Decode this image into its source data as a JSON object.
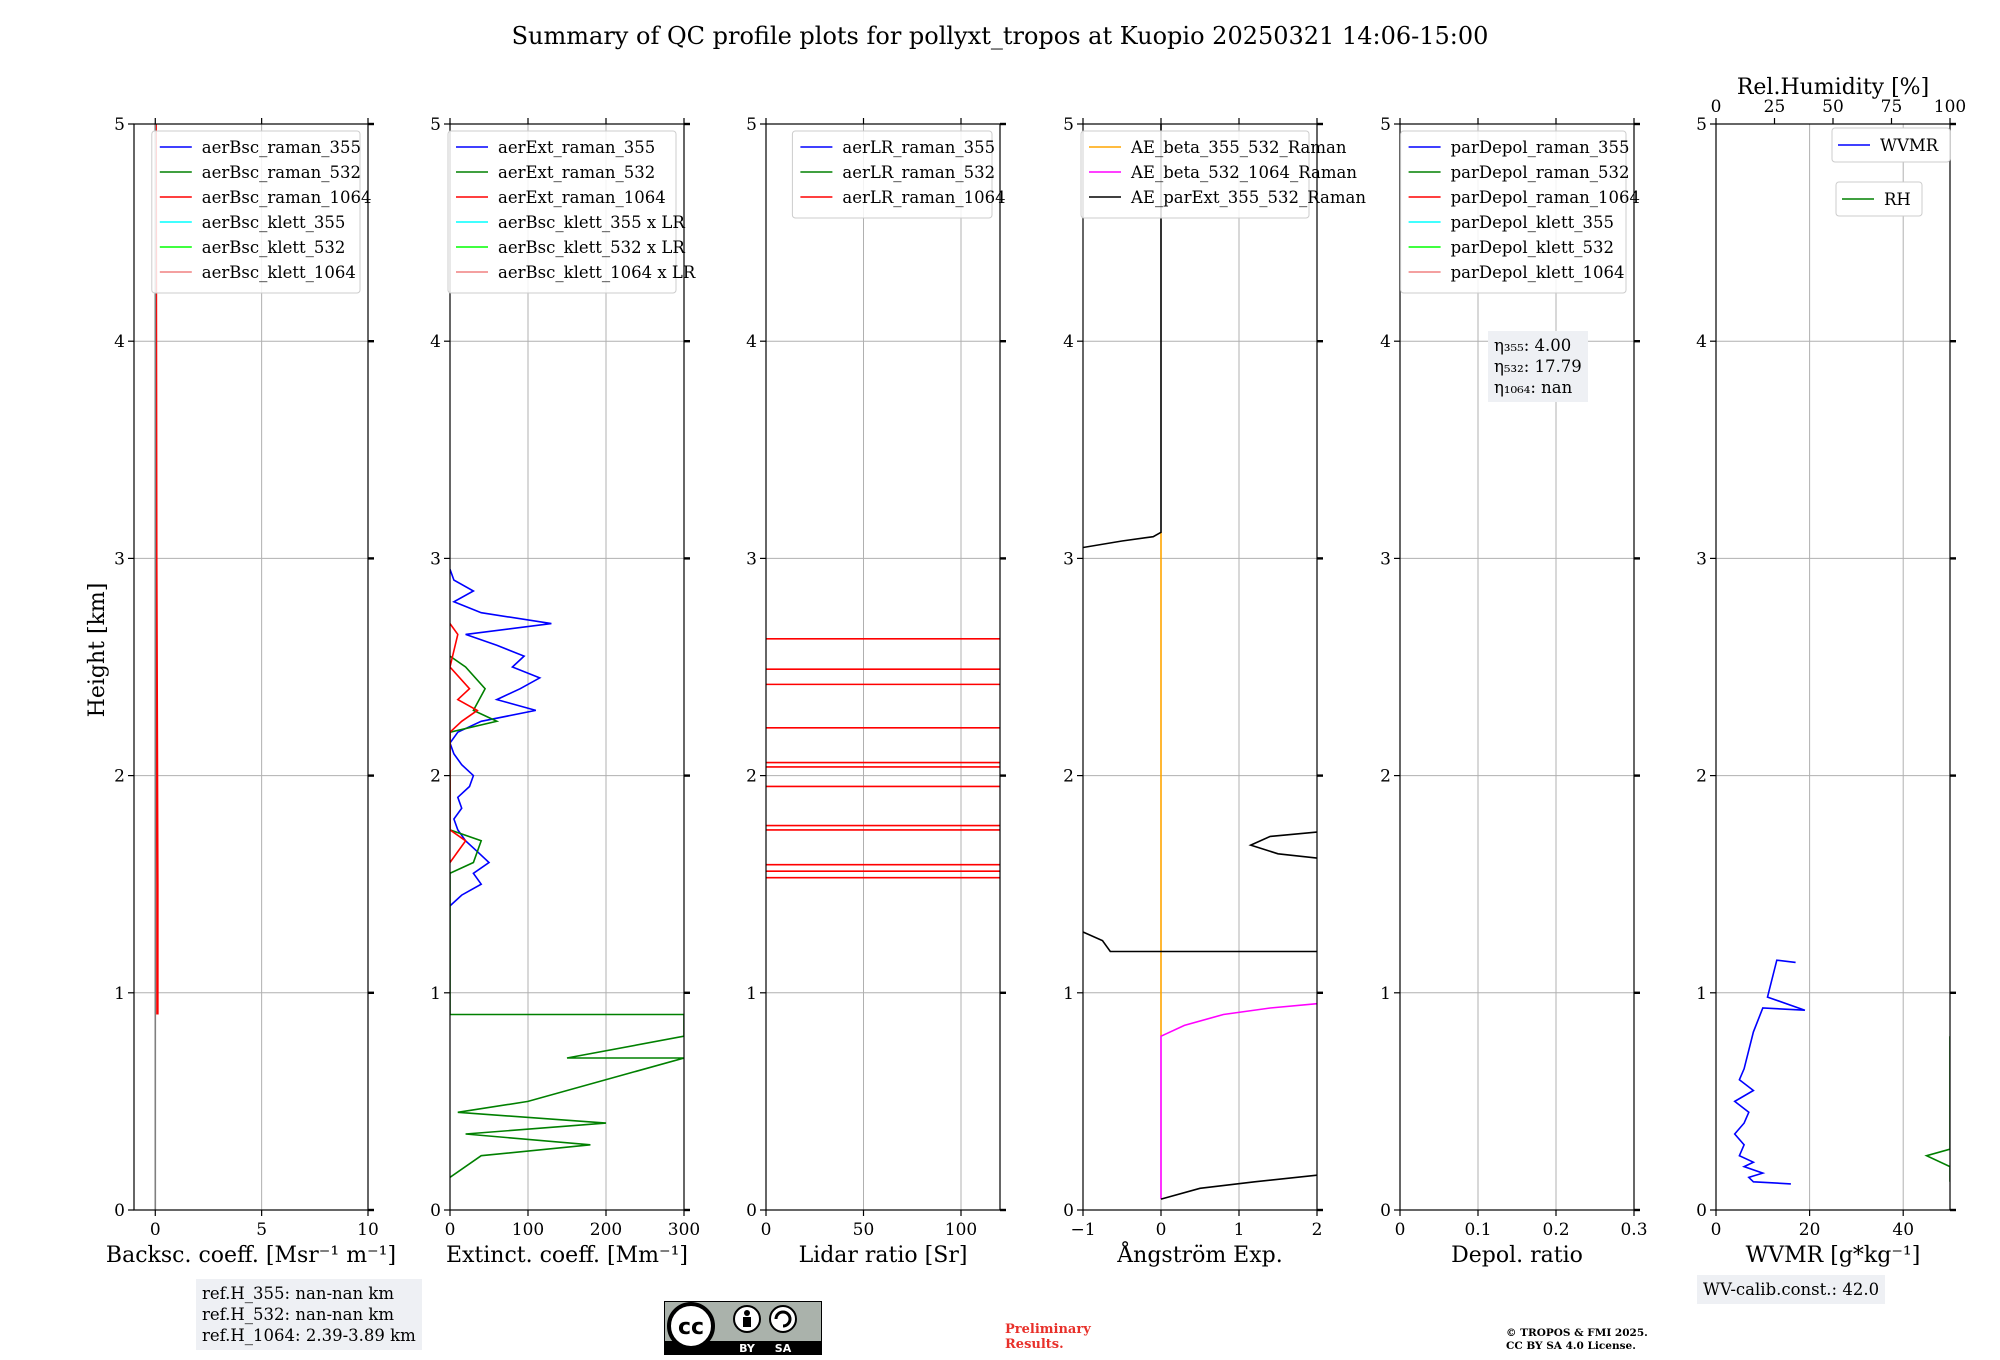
{
  "title": "Summary of QC profile plots for pollyxt_tropos at Kuopio 20250321 14:06-15:00",
  "ylabel": "Height [km]",
  "colors": {
    "blue": "#0000ff",
    "green": "#008000",
    "red": "#ff0000",
    "cyan": "#00ffff",
    "lime": "#00ff00",
    "salmon": "#f08080",
    "orange": "#ffa500",
    "magenta": "#ff00ff",
    "black": "#000000",
    "grid": "#b0b0b0"
  },
  "chart_data": [
    {
      "type": "line",
      "xlabel": "Backsc. coeff. [Msr$^{-1}$ m$^{-1}$]",
      "xlabel_display": "Backsc. coeff. [Msr⁻¹ m⁻¹]",
      "xlim": [
        -1,
        10
      ],
      "ylim": [
        0,
        5
      ],
      "xticks": [
        0,
        5,
        10
      ],
      "yticks": [
        0,
        1,
        2,
        3,
        4,
        5
      ],
      "legend": [
        "aerBsc_raman_355",
        "aerBsc_raman_532",
        "aerBsc_raman_1064",
        "aerBsc_klett_355",
        "aerBsc_klett_532",
        "aerBsc_klett_1064"
      ],
      "legend_colors": [
        "blue",
        "green",
        "red",
        "cyan",
        "lime",
        "salmon"
      ],
      "legend_loc": "top-right",
      "series": [
        {
          "name": "aerBsc_raman_1064",
          "color": "red",
          "points": [
            [
              0.1,
              0.9
            ],
            [
              0.1,
              1.5
            ],
            [
              0.05,
              3.0
            ],
            [
              0.02,
              5.0
            ]
          ]
        },
        {
          "name": "aerBsc_klett_355",
          "color": "grey",
          "points": [
            [
              0.0,
              0.0
            ],
            [
              0.0,
              5.0
            ]
          ]
        }
      ]
    },
    {
      "type": "line",
      "xlabel": "Extinct. coeff. [Mm$^{-1}$]",
      "xlabel_display": "Extinct. coeff. [Mm⁻¹]",
      "xlim": [
        0,
        300
      ],
      "ylim": [
        0,
        5
      ],
      "xticks": [
        0,
        100,
        200,
        300
      ],
      "yticks": [
        0,
        1,
        2,
        3,
        4,
        5
      ],
      "legend": [
        "aerExt_raman_355",
        "aerExt_raman_532",
        "aerExt_raman_1064",
        "aerBsc_klett_355 x LR",
        "aerBsc_klett_532 x LR",
        "aerBsc_klett_1064 x LR"
      ],
      "legend_colors": [
        "blue",
        "green",
        "red",
        "cyan",
        "lime",
        "salmon"
      ],
      "legend_loc": "top-right",
      "series": [
        {
          "name": "aerExt_raman_355",
          "color": "blue",
          "points": [
            [
              0,
              1.4
            ],
            [
              15,
              1.45
            ],
            [
              40,
              1.5
            ],
            [
              30,
              1.55
            ],
            [
              50,
              1.6
            ],
            [
              35,
              1.65
            ],
            [
              20,
              1.7
            ],
            [
              10,
              1.75
            ],
            [
              5,
              1.8
            ],
            [
              15,
              1.85
            ],
            [
              10,
              1.9
            ],
            [
              25,
              1.95
            ],
            [
              30,
              2.0
            ],
            [
              15,
              2.05
            ],
            [
              5,
              2.1
            ],
            [
              0,
              2.15
            ],
            [
              10,
              2.2
            ],
            [
              40,
              2.25
            ],
            [
              110,
              2.3
            ],
            [
              60,
              2.35
            ],
            [
              90,
              2.4
            ],
            [
              115,
              2.45
            ],
            [
              80,
              2.5
            ],
            [
              95,
              2.55
            ],
            [
              60,
              2.6
            ],
            [
              20,
              2.65
            ],
            [
              130,
              2.7
            ],
            [
              40,
              2.75
            ],
            [
              5,
              2.8
            ],
            [
              30,
              2.85
            ],
            [
              5,
              2.9
            ],
            [
              0,
              2.95
            ]
          ]
        },
        {
          "name": "aerExt_raman_532",
          "color": "green",
          "points": [
            [
              0,
              0.15
            ],
            [
              40,
              0.25
            ],
            [
              180,
              0.3
            ],
            [
              20,
              0.35
            ],
            [
              200,
              0.4
            ],
            [
              10,
              0.45
            ],
            [
              100,
              0.5
            ],
            [
              500,
              0.7
            ],
            [
              150,
              0.7
            ],
            [
              500,
              0.8
            ],
            [
              500,
              0.9
            ],
            [
              0,
              0.9
            ],
            [
              0,
              1.55
            ],
            [
              30,
              1.6
            ],
            [
              40,
              1.7
            ],
            [
              0,
              1.75
            ],
            [
              0,
              2.2
            ],
            [
              60,
              2.25
            ],
            [
              30,
              2.3
            ],
            [
              45,
              2.4
            ],
            [
              20,
              2.5
            ],
            [
              0,
              2.55
            ]
          ]
        },
        {
          "name": "aerExt_raman_1064",
          "color": "red",
          "points": [
            [
              0,
              1.6
            ],
            [
              10,
              1.65
            ],
            [
              20,
              1.7
            ],
            [
              0,
              1.75
            ],
            [
              0,
              2.2
            ],
            [
              15,
              2.25
            ],
            [
              35,
              2.3
            ],
            [
              10,
              2.35
            ],
            [
              25,
              2.4
            ],
            [
              0,
              2.5
            ],
            [
              10,
              2.65
            ],
            [
              0,
              2.7
            ]
          ]
        }
      ]
    },
    {
      "type": "line",
      "xlabel": "Lidar ratio [Sr]",
      "xlim": [
        0,
        120
      ],
      "ylim": [
        0,
        5
      ],
      "xticks": [
        0,
        50,
        100
      ],
      "yticks": [
        0,
        1,
        2,
        3,
        4,
        5
      ],
      "legend": [
        "aerLR_raman_355",
        "aerLR_raman_532",
        "aerLR_raman_1064"
      ],
      "legend_colors": [
        "blue",
        "green",
        "red"
      ],
      "legend_loc": "top-right",
      "series": [
        {
          "name": "aerLR_raman_1064",
          "color": "red",
          "heights": [
            1.53,
            1.56,
            1.59,
            1.75,
            1.77,
            1.95,
            2.04,
            2.06,
            2.22,
            2.42,
            2.49,
            2.63
          ]
        }
      ]
    },
    {
      "type": "line",
      "xlabel": "Ångström Exp.",
      "xlim": [
        -1,
        2
      ],
      "ylim": [
        0,
        5
      ],
      "xticks": [
        -1,
        0,
        1,
        2
      ],
      "yticks": [
        0,
        1,
        2,
        3,
        4,
        5
      ],
      "legend": [
        "AE_beta_355_532_Raman",
        "AE_beta_532_1064_Raman",
        "AE_parExt_355_532_Raman"
      ],
      "legend_colors": [
        "orange",
        "magenta",
        "black"
      ],
      "legend_loc": "top-right",
      "series": [
        {
          "name": "AE_beta_355_532_Raman",
          "color": "orange",
          "points": [
            [
              0,
              0.8
            ],
            [
              0,
              3.12
            ]
          ]
        },
        {
          "name": "AE_beta_532_1064_Raman",
          "color": "magenta",
          "points": [
            [
              0,
              0.05
            ],
            [
              0,
              0.8
            ],
            [
              0.3,
              0.85
            ],
            [
              0.8,
              0.9
            ],
            [
              1.4,
              0.93
            ],
            [
              2.0,
              0.95
            ]
          ]
        },
        {
          "name": "AE_parExt_355_532_Raman",
          "color": "black",
          "points": [
            [
              0,
              0.05
            ],
            [
              0.5,
              0.1
            ],
            [
              1.2,
              0.13
            ],
            [
              2.0,
              0.16
            ]
          ]
        },
        {
          "name": "AE_parExt_355_532_Raman",
          "color": "black",
          "points": [
            [
              -1,
              1.28
            ],
            [
              -0.75,
              1.24
            ],
            [
              -0.65,
              1.19
            ],
            [
              2.0,
              1.19
            ]
          ]
        },
        {
          "name": "AE_parExt_355_532_Raman",
          "color": "black",
          "points": [
            [
              2.0,
              1.62
            ],
            [
              1.5,
              1.64
            ],
            [
              1.15,
              1.68
            ],
            [
              1.4,
              1.72
            ],
            [
              2.0,
              1.74
            ]
          ]
        },
        {
          "name": "AE_parExt_355_532_Raman",
          "color": "black",
          "points": [
            [
              -1,
              3.05
            ],
            [
              -0.5,
              3.08
            ],
            [
              -0.1,
              3.1
            ],
            [
              0,
              3.12
            ],
            [
              0,
              5.0
            ]
          ]
        }
      ]
    },
    {
      "type": "line",
      "xlabel": "Depol. ratio",
      "xlim": [
        0.0,
        0.3
      ],
      "ylim": [
        0,
        5
      ],
      "xticks": [
        0.0,
        0.1,
        0.2,
        0.3
      ],
      "yticks": [
        0,
        1,
        2,
        3,
        4,
        5
      ],
      "legend": [
        "parDepol_raman_355",
        "parDepol_raman_532",
        "parDepol_raman_1064",
        "parDepol_klett_355",
        "parDepol_klett_532",
        "parDepol_klett_1064"
      ],
      "legend_colors": [
        "blue",
        "green",
        "red",
        "cyan",
        "lime",
        "salmon"
      ],
      "legend_loc": "top-right",
      "series": []
    },
    {
      "type": "line",
      "xlabel": "WVMR [$g*kg^{-1}$]",
      "xlabel_display": "WVMR [g*kg⁻¹]",
      "xlim": [
        0,
        50
      ],
      "ylim": [
        0,
        5
      ],
      "xticks": [
        0,
        20,
        40
      ],
      "yticks": [
        0,
        1,
        2,
        3,
        4,
        5
      ],
      "top_xlabel": "Rel.Humidity [%]",
      "top_xlim": [
        0,
        100
      ],
      "top_xticks": [
        0,
        25,
        50,
        75,
        100
      ],
      "legend": [
        "WVMR",
        "RH"
      ],
      "legend_colors": [
        "blue",
        "green"
      ],
      "legend_loc": "top-right",
      "series": [
        {
          "name": "WVMR",
          "color": "blue",
          "points": [
            [
              16,
              0.12
            ],
            [
              8,
              0.13
            ],
            [
              7,
              0.15
            ],
            [
              10,
              0.17
            ],
            [
              6,
              0.2
            ],
            [
              8,
              0.22
            ],
            [
              5,
              0.25
            ],
            [
              6,
              0.3
            ],
            [
              4,
              0.35
            ],
            [
              6,
              0.4
            ],
            [
              7,
              0.45
            ],
            [
              4,
              0.5
            ],
            [
              8,
              0.55
            ],
            [
              5,
              0.6
            ],
            [
              6,
              0.65
            ],
            [
              8,
              0.82
            ],
            [
              10,
              0.93
            ],
            [
              19,
              0.92
            ],
            [
              11,
              0.98
            ],
            [
              13,
              1.15
            ],
            [
              17,
              1.14
            ]
          ]
        },
        {
          "name": "RH",
          "color": "green",
          "points": [
            [
              70,
              0.13
            ],
            [
              55,
              0.15
            ],
            [
              90,
              0.17
            ],
            [
              70,
              0.2
            ],
            [
              45,
              0.25
            ],
            [
              75,
              0.28
            ],
            [
              50,
              0.3
            ],
            [
              80,
              0.35
            ],
            [
              60,
              0.42
            ],
            [
              100,
              0.47
            ],
            [
              55,
              0.48
            ],
            [
              90,
              0.52
            ],
            [
              60,
              0.58
            ],
            [
              100,
              0.62
            ],
            [
              55,
              0.64
            ],
            [
              100,
              0.8
            ]
          ]
        }
      ]
    }
  ],
  "info": {
    "ref_h_355": "ref.H_355: nan-nan km",
    "ref_h_532": "ref.H_532: nan-nan km",
    "ref_h_1064": "ref.H_1064: 2.39-3.89 km",
    "eta_355": "η₃₅₅: 4.00",
    "eta_532": "η₅₃₂: 17.79",
    "eta_1064": "η₁₀₆₄: nan",
    "wv_calib": "WV-calib.const.: 42.0"
  },
  "license": {
    "cc_label": "cc",
    "by_label": "BY",
    "sa_label": "SA",
    "preliminary_line1": "Preliminary",
    "preliminary_line2": "Results.",
    "copyright_line1": "© TROPOS & FMI 2025.",
    "copyright_line2": "CC BY SA 4.0 License."
  }
}
